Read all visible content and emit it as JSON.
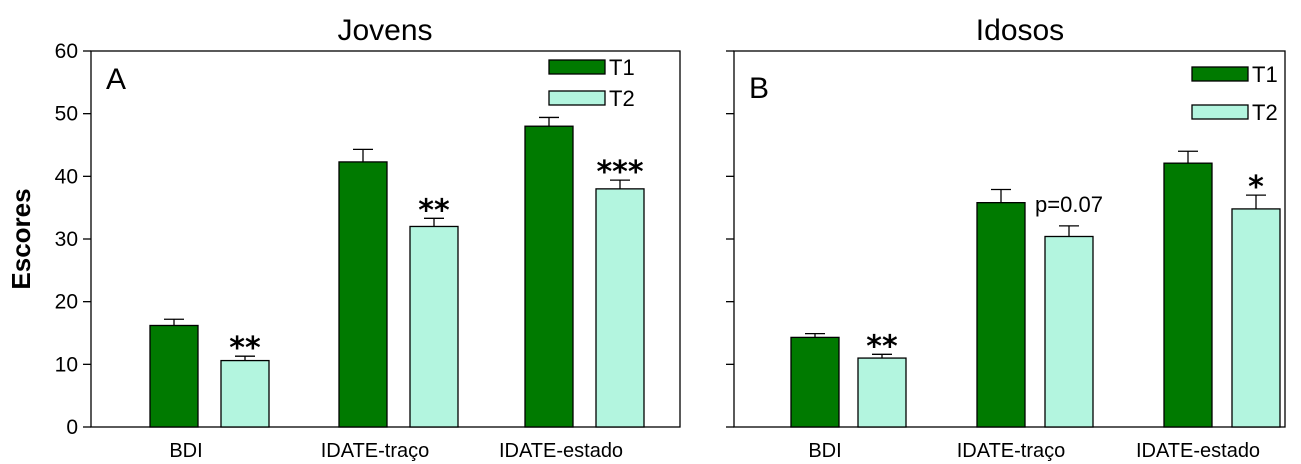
{
  "chart_data": [
    {
      "type": "bar",
      "title": "Jovens",
      "panel": "A",
      "ylabel": "Escores",
      "xlabel": "",
      "ylim": [
        0,
        60
      ],
      "yticks": [
        0,
        10,
        20,
        30,
        40,
        50,
        60
      ],
      "categories": [
        "BDI",
        "IDATE-traço",
        "IDATE-estado"
      ],
      "series": [
        {
          "name": "T1",
          "color": "#007a00",
          "values": [
            16.2,
            42.3,
            48.0
          ],
          "errors": [
            1.0,
            2.0,
            1.4
          ]
        },
        {
          "name": "T2",
          "color": "#b3f5df",
          "values": [
            10.6,
            32.0,
            38.0
          ],
          "errors": [
            0.7,
            1.3,
            1.4
          ]
        }
      ],
      "annotations": [
        {
          "category": 0,
          "series": 1,
          "text": "**"
        },
        {
          "category": 1,
          "series": 1,
          "text": "**"
        },
        {
          "category": 2,
          "series": 1,
          "text": "***"
        }
      ],
      "legend": "top-right",
      "grid": false
    },
    {
      "type": "bar",
      "title": "Idosos",
      "panel": "B",
      "ylabel": "",
      "xlabel": "",
      "ylim": [
        0,
        60
      ],
      "yticks": [
        0,
        10,
        20,
        30,
        40,
        50,
        60
      ],
      "categories": [
        "BDI",
        "IDATE-traço",
        "IDATE-estado"
      ],
      "series": [
        {
          "name": "T1",
          "color": "#007a00",
          "values": [
            14.3,
            35.8,
            42.1
          ],
          "errors": [
            0.6,
            2.1,
            1.9
          ]
        },
        {
          "name": "T2",
          "color": "#b3f5df",
          "values": [
            11.0,
            30.4,
            34.8
          ],
          "errors": [
            0.6,
            1.7,
            2.2
          ]
        }
      ],
      "annotations": [
        {
          "category": 0,
          "series": 1,
          "text": "**"
        },
        {
          "category": 1,
          "series": 1,
          "text": "p=0.07"
        },
        {
          "category": 2,
          "series": 1,
          "text": "*"
        }
      ],
      "legend": "top-right",
      "grid": false
    }
  ]
}
